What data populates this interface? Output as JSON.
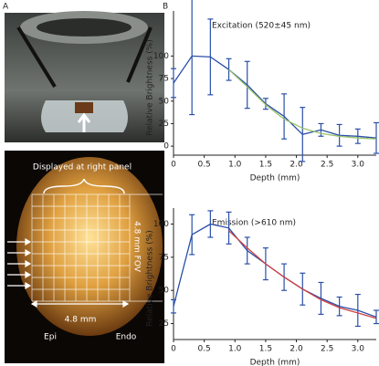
{
  "panels": {
    "a": "A",
    "b": "B"
  },
  "photo_labels": {
    "displayed": "Displayed at right panel",
    "width": "4.8 mm",
    "fov": "4.8 mm FOV",
    "epi": "Epi",
    "endo": "Endo"
  },
  "chart_data": [
    {
      "type": "line",
      "title": "Excitation (520±45 nm)",
      "x_label": "Depth (mm)",
      "y_label": "Relative Brightness (%)",
      "x": [
        0,
        0.3,
        0.6,
        0.9,
        1.2,
        1.5,
        1.8,
        2.1,
        2.4,
        2.7,
        3.0,
        3.3
      ],
      "series": [
        {
          "color": "#2a4fa8",
          "values": [
            70,
            100,
            99,
            85,
            68,
            47,
            33,
            13,
            18,
            12,
            11,
            9
          ],
          "errors": [
            16,
            65,
            42,
            12,
            26,
            6,
            25,
            30,
            7,
            12,
            8,
            17
          ]
        },
        {
          "color": "#9cc46a",
          "values": [
            null,
            null,
            null,
            85,
            66,
            46,
            30,
            20,
            14,
            11,
            9,
            8
          ]
        }
      ],
      "xlim": [
        0,
        3.3
      ],
      "xticks": [
        0,
        0.5,
        {
          "value": 1,
          "label": "1.0"
        },
        1.5,
        {
          "value": 2,
          "label": "2.0"
        },
        2.5,
        {
          "value": 3,
          "label": "3.0"
        }
      ],
      "ylim": [
        -10,
        150
      ],
      "yticks": [
        0,
        25,
        50,
        75,
        100
      ]
    },
    {
      "type": "line",
      "title": "Emission (>610 nm)",
      "x_label": "Depth (mm)",
      "y_label": "Relative Brightness (%)",
      "x": [
        0,
        0.3,
        0.6,
        0.9,
        1.2,
        1.5,
        1.8,
        2.1,
        2.4,
        2.7,
        3.0,
        3.3
      ],
      "series": [
        {
          "color": "#2a4fa8",
          "values": [
            38,
            92,
            100,
            97,
            80,
            70,
            60,
            51,
            44,
            38,
            35,
            30
          ],
          "errors": [
            5,
            15,
            10,
            12,
            10,
            12,
            10,
            12,
            12,
            7,
            12,
            5
          ]
        },
        {
          "color": "#d04040",
          "values": [
            null,
            null,
            null,
            95,
            82,
            70,
            60,
            51,
            43,
            37,
            33,
            29
          ]
        }
      ],
      "xlim": [
        0,
        3.3
      ],
      "xticks": [
        0,
        0.5,
        {
          "value": 1,
          "label": "1.0"
        },
        1.5,
        {
          "value": 2,
          "label": "2.0"
        },
        2.5,
        {
          "value": 3,
          "label": "3.0"
        }
      ],
      "ylim": [
        13,
        112
      ],
      "yticks": [
        25,
        50,
        75,
        100
      ]
    }
  ]
}
